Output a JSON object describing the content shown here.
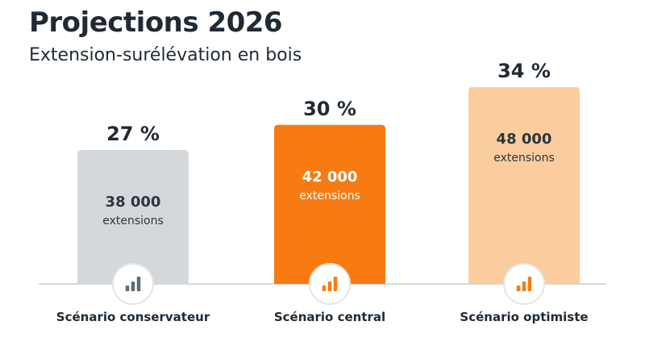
{
  "header": {
    "title": "Projections 2026",
    "subtitle": "Extension-surélévation en bois"
  },
  "chart_data": {
    "type": "bar",
    "title": "Projections 2026",
    "subtitle": "Extension-surélévation en bois",
    "categories": [
      "Scénario conservateur",
      "Scénario central",
      "Scénario optimiste"
    ],
    "values": [
      38000,
      42000,
      48000
    ],
    "value_labels": [
      "38 000",
      "42 000",
      "48 000"
    ],
    "unit_label": "extensions",
    "percent_labels": [
      "27 %",
      "30 %",
      "34 %"
    ],
    "percent_values": [
      27,
      30,
      34
    ],
    "colors": [
      "#d5d8db",
      "#f77b12",
      "#fbcd9e"
    ],
    "value_text_colors": [
      "#2b3640",
      "#ffffff",
      "#2b3640"
    ],
    "icon_colors": [
      "#5f6b75",
      "#f77b12",
      "#f77b12"
    ],
    "icons": [
      "bar-chart-icon",
      "bar-chart-icon",
      "bar-chart-icon"
    ],
    "xlabel": "",
    "ylabel": "",
    "grid": false
  }
}
